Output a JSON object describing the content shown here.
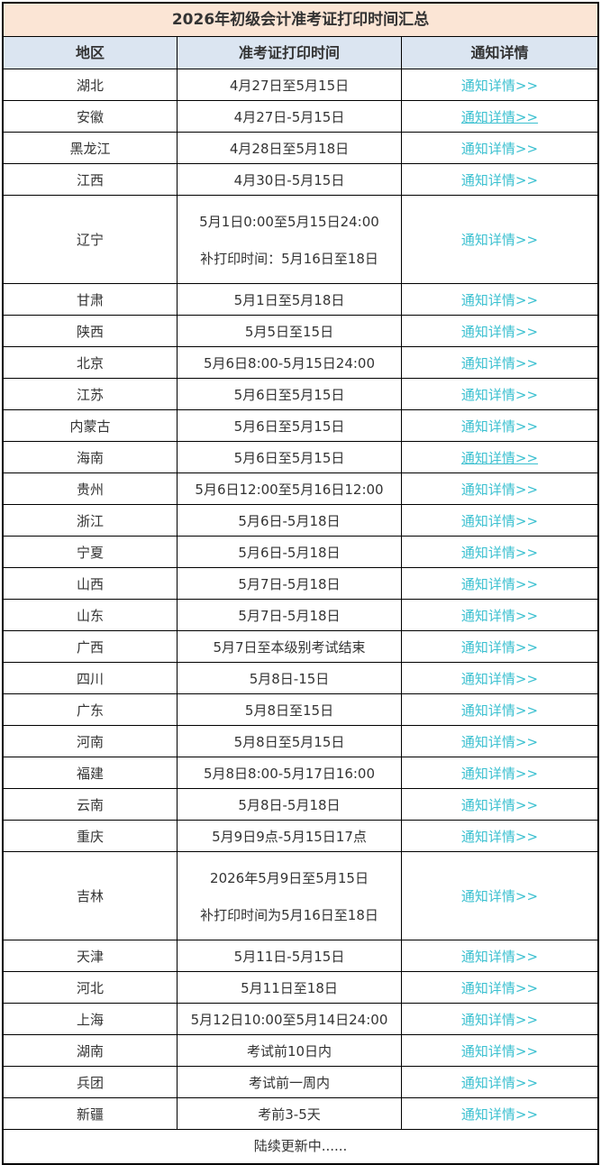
{
  "title": "2026年初级会计准考证打印时间汇总",
  "columns": [
    "地区",
    "准考证打印时间",
    "通知详情"
  ],
  "link_label": "通知详情>>",
  "footer": "陆续更新中......",
  "colors": {
    "title_bg": "#fbe5d5",
    "header_bg": "#dbe5f1",
    "link": "#3bc0d0",
    "border": "#000000",
    "text": "#333333"
  },
  "rows": [
    {
      "region": "湖北",
      "time": "4月27日至5月15日",
      "underline": false,
      "tall": false
    },
    {
      "region": "安徽",
      "time": "4月27日-5月15日",
      "underline": true,
      "tall": false
    },
    {
      "region": "黑龙江",
      "time": "4月28日至5月18日",
      "underline": false,
      "tall": false
    },
    {
      "region": "江西",
      "time": "4月30日-5月15日",
      "underline": false,
      "tall": false
    },
    {
      "region": "辽宁",
      "time": "5月1日0:00至5月15日24:00",
      "time2": "补打印时间：5月16日至18日",
      "underline": false,
      "tall": true
    },
    {
      "region": "甘肃",
      "time": "5月1日至5月18日",
      "underline": false,
      "tall": false
    },
    {
      "region": "陕西",
      "time": "5月5日至15日",
      "underline": false,
      "tall": false
    },
    {
      "region": "北京",
      "time": "5月6日8:00-5月15日24:00",
      "underline": false,
      "tall": false
    },
    {
      "region": "江苏",
      "time": "5月6日至5月15日",
      "underline": false,
      "tall": false
    },
    {
      "region": "内蒙古",
      "time": "5月6日至5月15日",
      "underline": false,
      "tall": false
    },
    {
      "region": "海南",
      "time": "5月6日至5月15日",
      "underline": true,
      "tall": false
    },
    {
      "region": "贵州",
      "time": "5月6日12:00至5月16日12:00",
      "underline": false,
      "tall": false
    },
    {
      "region": "浙江",
      "time": "5月6日-5月18日",
      "underline": false,
      "tall": false
    },
    {
      "region": "宁夏",
      "time": "5月6日-5月18日",
      "underline": false,
      "tall": false
    },
    {
      "region": "山西",
      "time": "5月7日-5月18日",
      "underline": false,
      "tall": false
    },
    {
      "region": "山东",
      "time": "5月7日-5月18日",
      "underline": false,
      "tall": false
    },
    {
      "region": "广西",
      "time": "5月7日至本级别考试结束",
      "underline": false,
      "tall": false
    },
    {
      "region": "四川",
      "time": "5月8日-15日",
      "underline": false,
      "tall": false
    },
    {
      "region": "广东",
      "time": "5月8日至15日",
      "underline": false,
      "tall": false
    },
    {
      "region": "河南",
      "time": "5月8日至5月15日",
      "underline": false,
      "tall": false
    },
    {
      "region": "福建",
      "time": "5月8日8:00-5月17日16:00",
      "underline": false,
      "tall": false
    },
    {
      "region": "云南",
      "time": "5月8日-5月18日",
      "underline": false,
      "tall": false
    },
    {
      "region": "重庆",
      "time": "5月9日9点-5月15日17点",
      "underline": false,
      "tall": false
    },
    {
      "region": "吉林",
      "time": "2026年5月9日至5月15日",
      "time2": "补打印时间为5月16日至18日",
      "underline": false,
      "tall": true
    },
    {
      "region": "天津",
      "time": "5月11日-5月15日",
      "underline": false,
      "tall": false
    },
    {
      "region": "河北",
      "time": "5月11日至18日",
      "underline": false,
      "tall": false
    },
    {
      "region": "上海",
      "time": "5月12日10:00至5月14日24:00",
      "underline": false,
      "tall": false
    },
    {
      "region": "湖南",
      "time": "考试前10日内",
      "underline": false,
      "tall": false
    },
    {
      "region": "兵团",
      "time": "考试前一周内",
      "underline": false,
      "tall": false
    },
    {
      "region": "新疆",
      "time": "考前3-5天",
      "underline": false,
      "tall": false
    }
  ]
}
